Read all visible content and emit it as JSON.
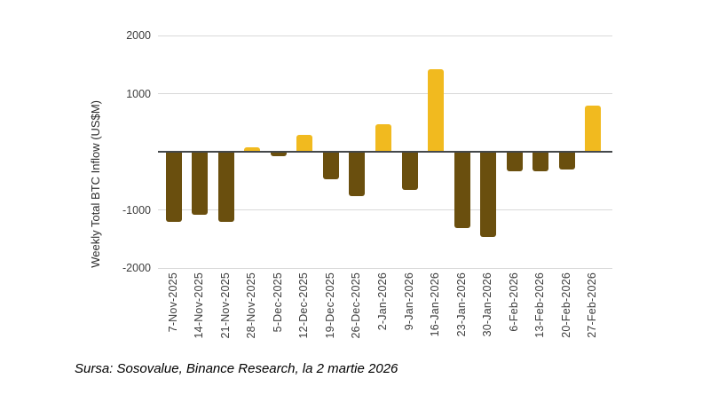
{
  "chart": {
    "ylabel": "Weekly Total BTC Inflow (US$M)",
    "source_note": "Sursa: Sosovalue, Binance Research, la 2 martie 2026"
  },
  "chart_data": {
    "type": "bar",
    "title": "",
    "xlabel": "",
    "ylabel": "Weekly Total BTC Inflow (US$M)",
    "categories": [
      "7-Nov-2025",
      "14-Nov-2025",
      "21-Nov-2025",
      "28-Nov-2025",
      "5-Dec-2025",
      "12-Dec-2025",
      "19-Dec-2025",
      "26-Dec-2025",
      "2-Jan-2026",
      "9-Jan-2026",
      "16-Jan-2026",
      "23-Jan-2026",
      "30-Jan-2026",
      "6-Feb-2026",
      "13-Feb-2026",
      "20-Feb-2026",
      "27-Feb-2026"
    ],
    "values": [
      -1200,
      -1090,
      -1210,
      70,
      -80,
      290,
      -470,
      -760,
      470,
      -660,
      1420,
      -1320,
      -1460,
      -330,
      -340,
      -310,
      790
    ],
    "ylim": [
      -2000,
      2000
    ],
    "ytick_values": [
      2000,
      1000,
      -1000,
      -2000
    ],
    "ytick_labels": [
      "2000",
      "1000",
      "-1000",
      "-2000"
    ],
    "gridline_values": [
      2000,
      1000,
      -1000,
      -2000
    ],
    "zero_baseline": 0,
    "grid": true,
    "legend_position": "none",
    "colors": {
      "positive_bar": "#F1BA1F",
      "negative_bar": "#6A4F0E",
      "gridline": "#d9d9d9",
      "zero_line": "#44484a",
      "axis_text": "#3d3d3d"
    },
    "source_note": "Sursa: Sosovalue, Binance Research, la 2 martie 2026"
  }
}
